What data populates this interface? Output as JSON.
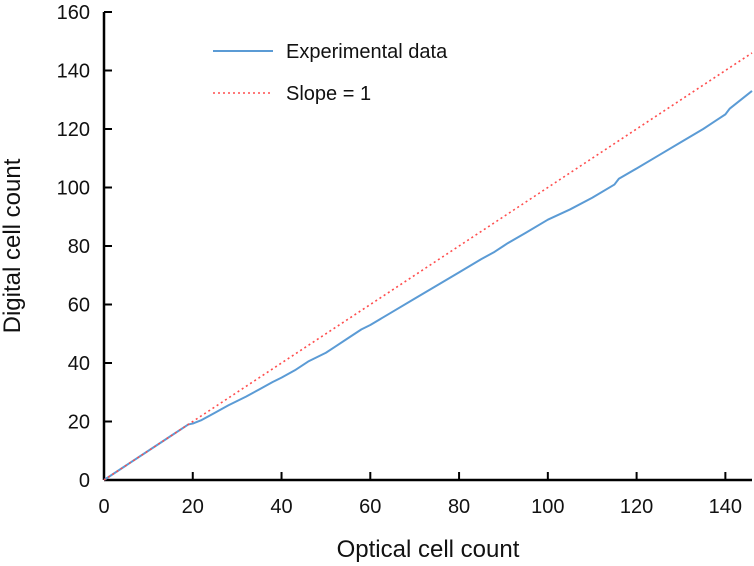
{
  "chart_data": {
    "type": "line",
    "title": "",
    "xlabel": "Optical cell count",
    "ylabel": "Digital cell count",
    "xlim": [
      0,
      146
    ],
    "ylim": [
      0,
      160
    ],
    "xticks": [
      0,
      20,
      40,
      60,
      80,
      100,
      120,
      140
    ],
    "yticks": [
      0,
      20,
      40,
      60,
      80,
      100,
      120,
      140,
      160
    ],
    "legend_position": "top-center",
    "series": [
      {
        "name": "Experimental data",
        "style": "solid",
        "color": "#5b9bd5",
        "x": [
          0,
          5,
          10,
          15,
          19,
          20,
          22,
          25,
          28,
          30,
          32,
          35,
          38,
          40,
          43,
          46,
          50,
          52,
          55,
          58,
          60,
          65,
          70,
          75,
          80,
          85,
          88,
          90,
          91,
          95,
          100,
          105,
          110,
          115,
          116,
          120,
          125,
          130,
          135,
          138,
          140,
          141,
          146
        ],
        "y": [
          0,
          5,
          10,
          15,
          19,
          19.3,
          20.5,
          23,
          25.5,
          27,
          28.5,
          31,
          33.5,
          35,
          37.5,
          40.5,
          43.5,
          45.5,
          48.5,
          51.5,
          53,
          57.5,
          62,
          66.5,
          71,
          75.5,
          78,
          80,
          81,
          84.5,
          89,
          92.5,
          96.5,
          101,
          103,
          106.5,
          111,
          115.5,
          120,
          123,
          125,
          127,
          133
        ]
      },
      {
        "name": "Slope = 1",
        "style": "dotted",
        "color": "#ff4d4d",
        "x": [
          0,
          146
        ],
        "y": [
          0,
          146
        ]
      }
    ]
  }
}
